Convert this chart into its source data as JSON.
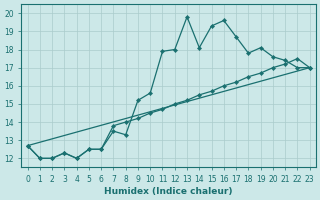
{
  "xlabel": "Humidex (Indice chaleur)",
  "bg_color": "#cce8e8",
  "line_color": "#1a7070",
  "grid_color": "#aacccc",
  "xlim": [
    -0.5,
    23.5
  ],
  "ylim": [
    11.5,
    20.5
  ],
  "xticks": [
    0,
    1,
    2,
    3,
    4,
    5,
    6,
    7,
    8,
    9,
    10,
    11,
    12,
    13,
    14,
    15,
    16,
    17,
    18,
    19,
    20,
    21,
    22,
    23
  ],
  "yticks": [
    12,
    13,
    14,
    15,
    16,
    17,
    18,
    19,
    20
  ],
  "line1_x": [
    0,
    1,
    2,
    3,
    4,
    5,
    6,
    7,
    8,
    9,
    10,
    11,
    12,
    13,
    14,
    15,
    16,
    17,
    18,
    19,
    20,
    21,
    22,
    23
  ],
  "line1_y": [
    12.7,
    12.0,
    12.0,
    12.3,
    12.0,
    12.5,
    12.5,
    13.5,
    13.3,
    15.2,
    15.6,
    17.9,
    18.0,
    19.8,
    18.1,
    19.3,
    19.6,
    18.7,
    17.8,
    18.1,
    17.6,
    17.4,
    17.0,
    17.0
  ],
  "line2_x": [
    0,
    1,
    2,
    3,
    4,
    5,
    6,
    7,
    8,
    9,
    10,
    11,
    12,
    13,
    14,
    15,
    16,
    17,
    18,
    19,
    20,
    21,
    22,
    23
  ],
  "line2_y": [
    12.7,
    12.0,
    12.0,
    12.3,
    12.0,
    12.5,
    12.5,
    13.8,
    14.0,
    14.2,
    14.5,
    14.7,
    15.0,
    15.2,
    15.5,
    15.7,
    16.0,
    16.2,
    16.5,
    16.7,
    17.0,
    17.2,
    17.5,
    17.0
  ],
  "line3_x": [
    0,
    23
  ],
  "line3_y": [
    12.7,
    17.0
  ]
}
